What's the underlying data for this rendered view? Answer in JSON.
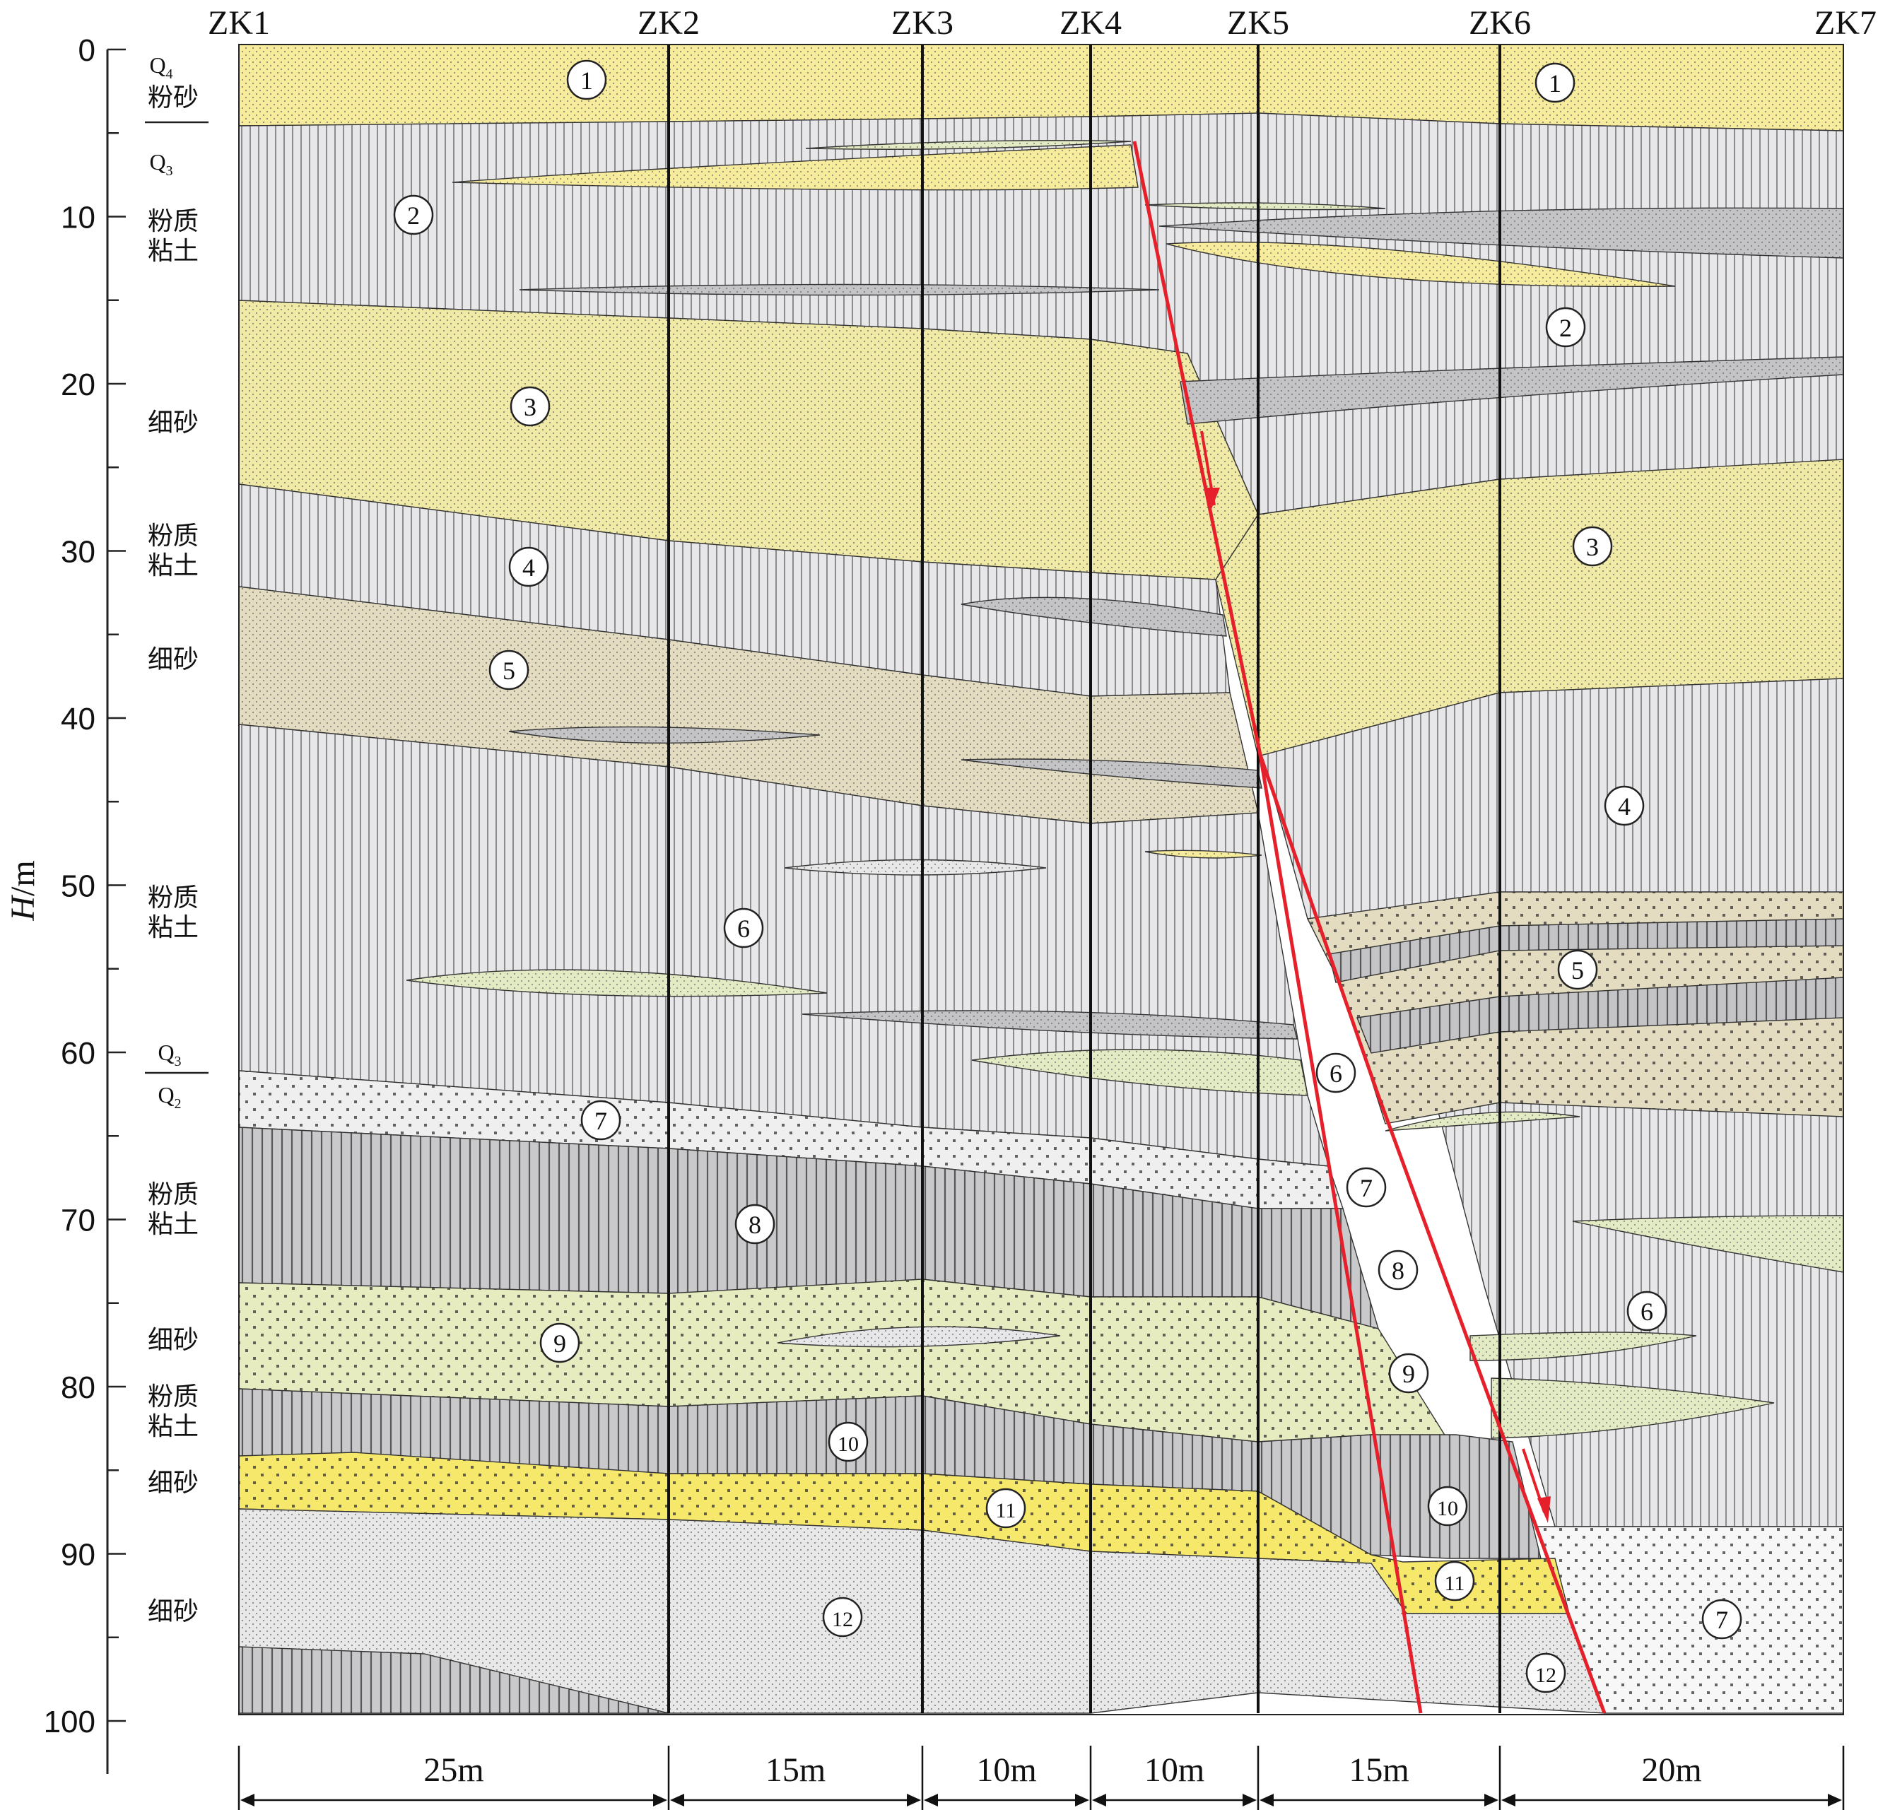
{
  "boreholes": [
    "ZK1",
    "ZK2",
    "ZK3",
    "ZK4",
    "ZK5",
    "ZK6",
    "ZK7"
  ],
  "spacings": [
    "25m",
    "15m",
    "10m",
    "10m",
    "15m",
    "20m"
  ],
  "depth_axis": {
    "label_italic": "H",
    "label_unit": "/m",
    "ticks": [
      "0",
      "10",
      "20",
      "30",
      "40",
      "50",
      "60",
      "70",
      "80",
      "90",
      "100"
    ]
  },
  "strata_legend": [
    {
      "age_main": "Q",
      "age_sub": "4",
      "text": "粉砂"
    },
    {
      "age_main": "Q",
      "age_sub": "3"
    },
    {
      "text_lines": [
        "粉质",
        "粘土"
      ]
    },
    {
      "text_lines": [
        "细砂"
      ]
    },
    {
      "text_lines": [
        "粉质",
        "粘土"
      ]
    },
    {
      "text_lines": [
        "细砂"
      ]
    },
    {
      "text_lines": [
        "粉质",
        "粘土"
      ]
    },
    {
      "age_top_main": "Q",
      "age_top_sub": "3",
      "age_bot_main": "Q",
      "age_bot_sub": "2"
    },
    {
      "text_lines": [
        "粉质",
        "粘土"
      ]
    },
    {
      "text_lines": [
        "细砂"
      ]
    },
    {
      "text_lines": [
        "粉质",
        "粘土"
      ]
    },
    {
      "text_lines": [
        "细砂"
      ]
    },
    {
      "text_lines": [
        "细砂"
      ]
    }
  ],
  "layer_markers": [
    "1",
    "1",
    "2",
    "2",
    "3",
    "3",
    "4",
    "4",
    "5",
    "5",
    "6",
    "6",
    "6",
    "7",
    "7",
    "7",
    "8",
    "8",
    "9",
    "9",
    "10",
    "10",
    "11",
    "11",
    "12",
    "12"
  ],
  "colors": {
    "silt_yellow": "#f7eb9c",
    "clay_gray": "#e7e7e9",
    "fine_sand_beige": "#f0eaa6",
    "sand_tan": "#e4dcc0",
    "lens_gray": "#c4c4c6",
    "lens_green": "#e3ebc4",
    "sand7_white": "#efefef",
    "clay8_gray": "#c9c9cb",
    "sand9_green": "#e6ecc0",
    "sand11_yellow": "#f6e86a",
    "sand12_light": "#e8e8e8",
    "fault_red": "#e5202a"
  }
}
